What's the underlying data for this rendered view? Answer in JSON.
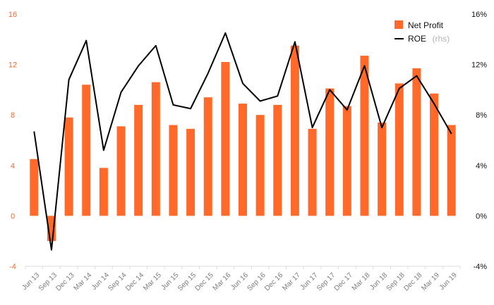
{
  "chart_data": {
    "type": "bar",
    "categories": [
      "Jun 13",
      "Sep 13",
      "Dec 13",
      "Mar 14",
      "Jun 14",
      "Sep 14",
      "Dec 14",
      "Mar 15",
      "Jun 15",
      "Sep 15",
      "Dec 15",
      "Mar 16",
      "Jun 16",
      "Sep 16",
      "Dec 16",
      "Mar 17",
      "Jun 17",
      "Sep 17",
      "Dec 17",
      "Mar 18",
      "Jun 18",
      "Sep 18",
      "Dec 18",
      "Mar 19",
      "Jun 19"
    ],
    "series": [
      {
        "name": "Net Profit",
        "type": "bar",
        "axis": "left",
        "color": "#FF6A2A",
        "values": [
          4.5,
          -2.0,
          7.8,
          10.4,
          3.8,
          7.1,
          8.8,
          10.6,
          7.2,
          6.9,
          9.4,
          12.2,
          8.9,
          8.0,
          8.8,
          13.5,
          6.9,
          10.1,
          8.7,
          12.7,
          7.4,
          10.5,
          11.7,
          9.7,
          7.2
        ]
      },
      {
        "name": "ROE",
        "name_suffix": "(rhs)",
        "type": "line",
        "axis": "right",
        "color": "#000000",
        "values": [
          6.7,
          -2.7,
          10.8,
          13.9,
          5.2,
          9.8,
          11.9,
          13.5,
          8.8,
          8.5,
          11.3,
          14.5,
          10.5,
          9.1,
          9.5,
          13.8,
          7.0,
          10.0,
          8.4,
          11.9,
          7.0,
          10.1,
          11.1,
          8.9,
          6.5
        ]
      }
    ],
    "left_axis": {
      "ylim": [
        -4,
        16
      ],
      "ticks": [
        "-4",
        "0",
        "4",
        "8",
        "12",
        "16"
      ],
      "tick_values": [
        -4,
        0,
        4,
        8,
        12,
        16
      ],
      "color": "#F26A2E"
    },
    "right_axis": {
      "ylim": [
        -4,
        16
      ],
      "ticks": [
        "-4%",
        "0%",
        "4%",
        "8%",
        "12%",
        "16%"
      ],
      "tick_values": [
        -4,
        0,
        4,
        8,
        12,
        16
      ],
      "color": "#111111"
    },
    "grid": false,
    "legend_position": "top-right",
    "title": "",
    "xlabel": "",
    "ylabel": ""
  }
}
